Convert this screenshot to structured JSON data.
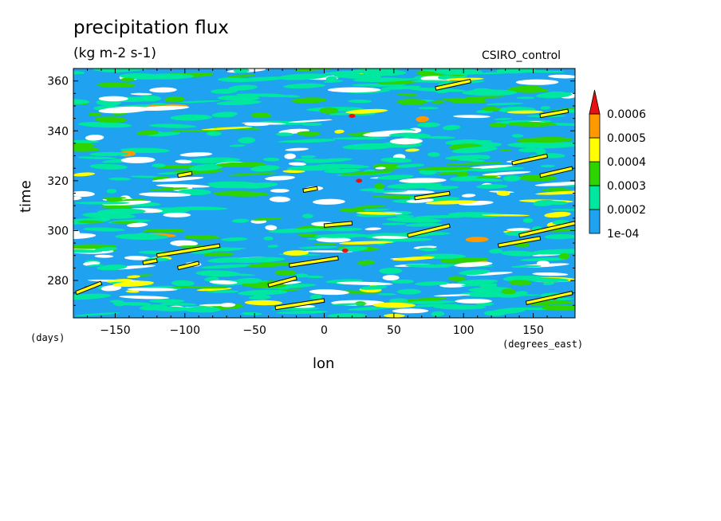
{
  "chart_data": {
    "type": "heatmap",
    "title": "precipitation flux",
    "subtitle": "(kg m-2 s-1)",
    "source_label": "CSIRO_control",
    "xlabel": "lon",
    "ylabel": "time",
    "x_units": "(degrees_east)",
    "y_units": "(days)",
    "xlim": [
      -180,
      180
    ],
    "ylim": [
      265,
      365
    ],
    "x_ticks": [
      -150,
      -100,
      -50,
      0,
      50,
      100,
      150
    ],
    "y_ticks": [
      280,
      300,
      320,
      340,
      360
    ],
    "x_tick_labels": [
      "−150",
      "−100",
      "−50",
      "0",
      "50",
      "100",
      "150"
    ],
    "y_tick_labels": [
      "280",
      "300",
      "320",
      "340",
      "360"
    ],
    "colorbar": {
      "levels": [
        "1e-04",
        "0.0002",
        "0.0003",
        "0.0004",
        "0.0005",
        "0.0006"
      ],
      "colors": [
        "#1fa3f0",
        "#00e8a0",
        "#2dd400",
        "#ffff00",
        "#ff9900",
        "#e81010"
      ],
      "extend": "max"
    },
    "background_color": "#1fa3f0",
    "streaks": [
      {
        "x0": -178,
        "x1": -160,
        "t0": 275,
        "t1": 279
      },
      {
        "x0": -130,
        "x1": -120,
        "t0": 287,
        "t1": 288
      },
      {
        "x0": -120,
        "x1": -75,
        "t0": 290,
        "t1": 294
      },
      {
        "x0": -105,
        "x1": -90,
        "t0": 285,
        "t1": 287
      },
      {
        "x0": -40,
        "x1": -20,
        "t0": 278,
        "t1": 281
      },
      {
        "x0": -25,
        "x1": 10,
        "t0": 286,
        "t1": 289
      },
      {
        "x0": -35,
        "x1": 0,
        "t0": 269,
        "t1": 272
      },
      {
        "x0": 0,
        "x1": 20,
        "t0": 302,
        "t1": 303
      },
      {
        "x0": -15,
        "x1": -5,
        "t0": 316,
        "t1": 317
      },
      {
        "x0": -105,
        "x1": -95,
        "t0": 322,
        "t1": 323
      },
      {
        "x0": 60,
        "x1": 90,
        "t0": 298,
        "t1": 302
      },
      {
        "x0": 65,
        "x1": 90,
        "t0": 313,
        "t1": 315
      },
      {
        "x0": 125,
        "x1": 155,
        "t0": 294,
        "t1": 297
      },
      {
        "x0": 140,
        "x1": 180,
        "t0": 298,
        "t1": 303
      },
      {
        "x0": 135,
        "x1": 160,
        "t0": 327,
        "t1": 330
      },
      {
        "x0": 155,
        "x1": 178,
        "t0": 322,
        "t1": 325
      },
      {
        "x0": 155,
        "x1": 175,
        "t0": 346,
        "t1": 348
      },
      {
        "x0": 80,
        "x1": 105,
        "t0": 357,
        "t1": 360
      },
      {
        "x0": 145,
        "x1": 178,
        "t0": 271,
        "t1": 275
      }
    ]
  }
}
